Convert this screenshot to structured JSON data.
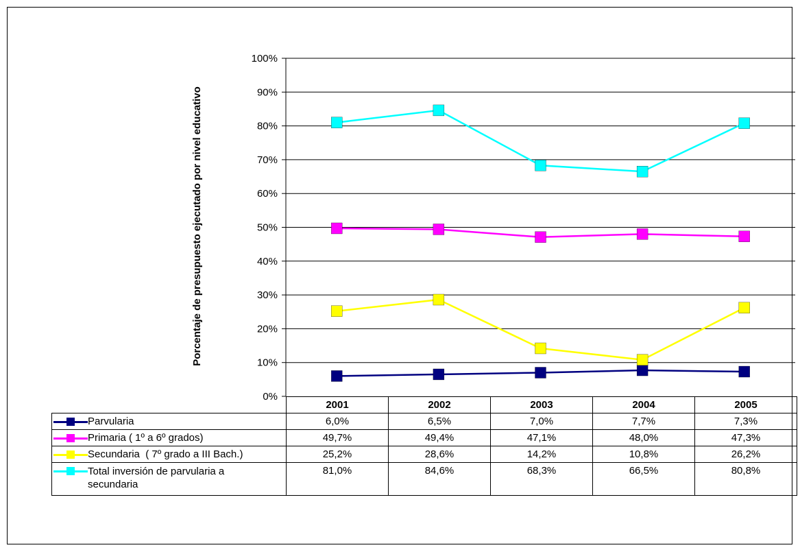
{
  "chart_data": {
    "type": "line",
    "ylabel": "Porcentaje de presupuesto ejecutado por nivel educativo",
    "ylim": [
      0,
      100
    ],
    "yticks": [
      "0%",
      "10%",
      "20%",
      "30%",
      "40%",
      "50%",
      "60%",
      "70%",
      "80%",
      "90%",
      "100%"
    ],
    "grid": true,
    "legend": "data-table-bottom",
    "categories": [
      "2001",
      "2002",
      "2003",
      "2004",
      "2005"
    ],
    "series": [
      {
        "name": "Parvularia",
        "color": "#000080",
        "values": [
          6.0,
          6.5,
          7.0,
          7.7,
          7.3
        ],
        "labels": [
          "6,0%",
          "6,5%",
          "7,0%",
          "7,7%",
          "7,3%"
        ]
      },
      {
        "name": "Primaria ( 1º a 6º grados)",
        "color": "#FF00FF",
        "values": [
          49.7,
          49.4,
          47.1,
          48.0,
          47.3
        ],
        "labels": [
          "49,7%",
          "49,4%",
          "47,1%",
          "48,0%",
          "47,3%"
        ]
      },
      {
        "name": "Secundaria  ( 7º grado a III Bach.)",
        "color": "#FFFF00",
        "values": [
          25.2,
          28.6,
          14.2,
          10.8,
          26.2
        ],
        "labels": [
          "25,2%",
          "28,6%",
          "14,2%",
          "10,8%",
          "26,2%"
        ]
      },
      {
        "name": "Total inversión de parvularia a secundaria",
        "color": "#00FFFF",
        "values": [
          81.0,
          84.6,
          68.3,
          66.5,
          80.8
        ],
        "labels": [
          "81,0%",
          "84,6%",
          "68,3%",
          "66,5%",
          "80,8%"
        ]
      }
    ]
  }
}
